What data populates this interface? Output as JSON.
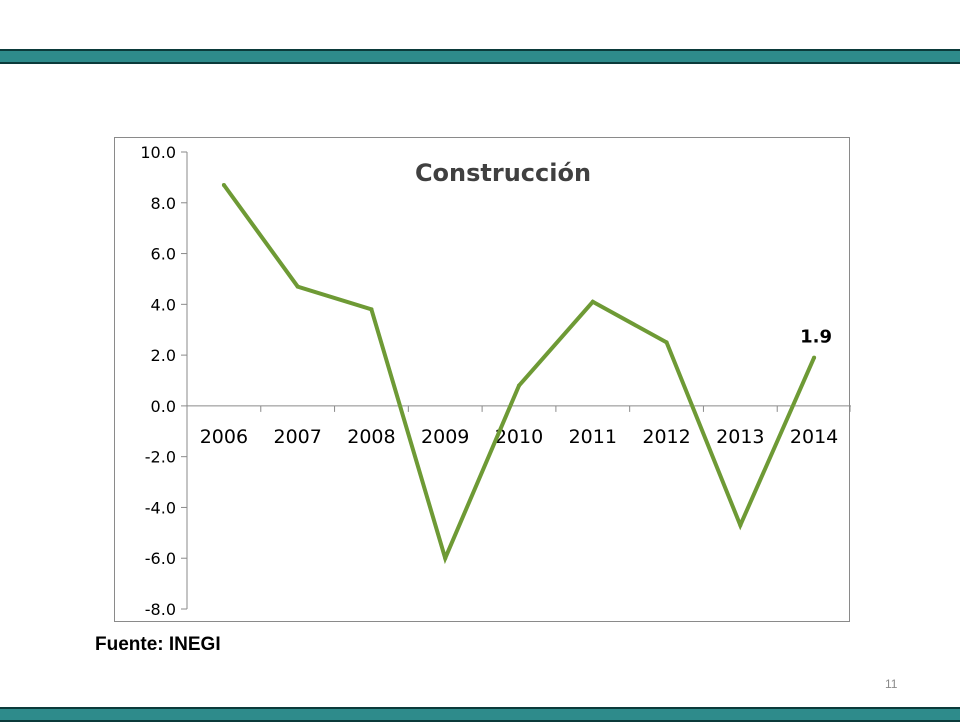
{
  "page": {
    "source": "Fuente: INEGI",
    "page_number": "11",
    "colors": {
      "band": "#2e8b8b",
      "line": "#6e9a35",
      "frame": "#8a8a8a"
    }
  },
  "chart_data": {
    "type": "line",
    "title": "Construcción",
    "xlabel": "",
    "ylabel": "",
    "categories": [
      "2006",
      "2007",
      "2008",
      "2009",
      "2010",
      "2011",
      "2012",
      "2013",
      "2014"
    ],
    "series": [
      {
        "values": [
          8.7,
          4.7,
          3.8,
          -6.0,
          0.8,
          4.1,
          2.5,
          -4.7,
          1.9
        ]
      }
    ],
    "ylim": [
      -8.0,
      10.0
    ],
    "yticks": [
      "10.0",
      "8.0",
      "6.0",
      "4.0",
      "2.0",
      "0.0",
      "-2.0",
      "-4.0",
      "-6.0",
      "-8.0"
    ],
    "data_labels": [
      {
        "index": 8,
        "text": "1.9"
      }
    ],
    "grid": false,
    "legend": "none"
  }
}
